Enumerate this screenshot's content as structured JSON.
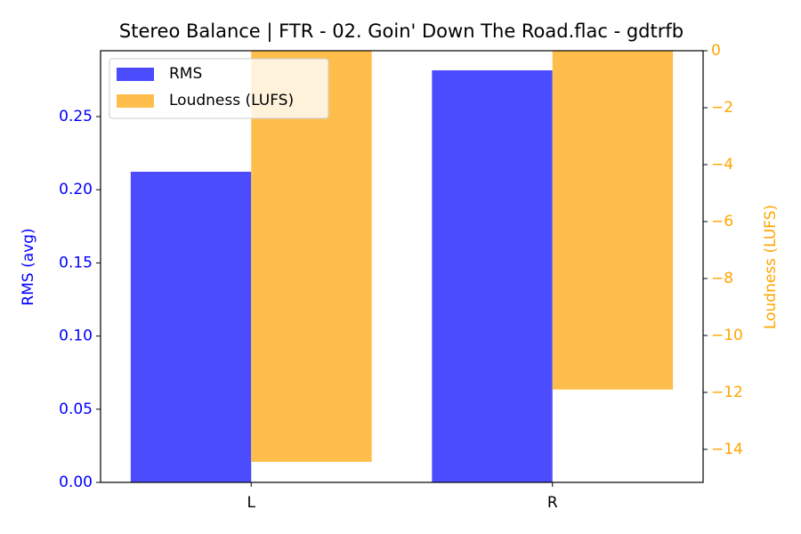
{
  "chart_data": {
    "type": "bar",
    "title": "Stereo Balance | FTR - 02. Goin' Down The Road.flac - gdtrfb",
    "categories": [
      "L",
      "R"
    ],
    "series": [
      {
        "name": "RMS",
        "color": "#4c4cff",
        "values": [
          0.2123,
          0.2816
        ]
      },
      {
        "name": "Loudness (LUFS)",
        "color": "#ffbe4c",
        "values": [
          -14.44,
          -11.9
        ],
        "axis": "y2"
      }
    ],
    "ylabel": "RMS (avg)",
    "y2label": "Loudness (LUFS)",
    "ylabel_color": "#0000ff",
    "y2label_color": "#ffa500",
    "ylim": [
      0,
      0.295
    ],
    "yticks": [
      {
        "value": 0,
        "label": "0.00"
      },
      {
        "value": 0.05,
        "label": "0.05"
      },
      {
        "value": 0.1,
        "label": "0.10"
      },
      {
        "value": 0.15,
        "label": "0.15"
      },
      {
        "value": 0.2,
        "label": "0.20"
      },
      {
        "value": 0.25,
        "label": "0.25"
      }
    ],
    "y2lim": [
      -15.16,
      0
    ],
    "y2ticks": [
      {
        "value": -14,
        "label": "−14"
      },
      {
        "value": -12,
        "label": "−12"
      },
      {
        "value": -10,
        "label": "−10"
      },
      {
        "value": -8,
        "label": "−8"
      },
      {
        "value": -6,
        "label": "−6"
      },
      {
        "value": -4,
        "label": "−4"
      },
      {
        "value": -2,
        "label": "−2"
      },
      0
    ],
    "legend": "upper left",
    "grid": false
  }
}
